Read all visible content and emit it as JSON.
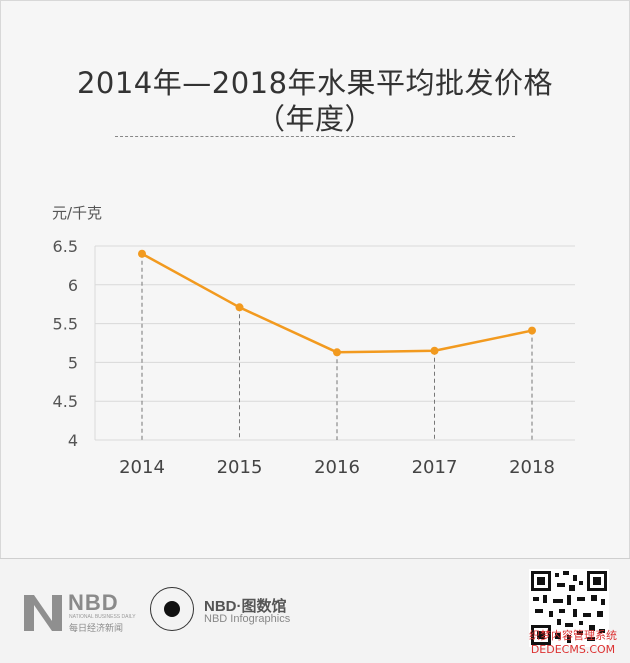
{
  "title_line1": "2014年—2018年水果平均批发价格",
  "title_line2": "（年度）",
  "chart_data": {
    "type": "line",
    "title": "2014年—2018年水果平均批发价格（年度）",
    "ylabel": "元/千克",
    "xlabel": "",
    "categories": [
      "2014",
      "2015",
      "2016",
      "2017",
      "2018"
    ],
    "series": [
      {
        "values": [
          6.4,
          5.71,
          5.13,
          5.15,
          5.41
        ]
      }
    ],
    "ylim": [
      4,
      6.5
    ],
    "yticks": [
      "4",
      "4.5",
      "5",
      "5.5",
      "6",
      "6.5"
    ],
    "ytick_values": [
      4,
      4.5,
      5,
      5.5,
      6,
      6.5
    ],
    "grid": true,
    "line_color": "#f29a1f",
    "grid_color": "#d9d9d9"
  },
  "footer": {
    "nbd": "NBD",
    "nbd_en": "NATIONAL BUSINESS DAILY",
    "nbd_cn": "每日经济新闻",
    "infographics_title": "NBD·图数馆",
    "infographics_sub": "NBD Infographics",
    "watermark_line1": "织梦内容管理系统",
    "watermark_line2": "DEDECMS.COM"
  }
}
